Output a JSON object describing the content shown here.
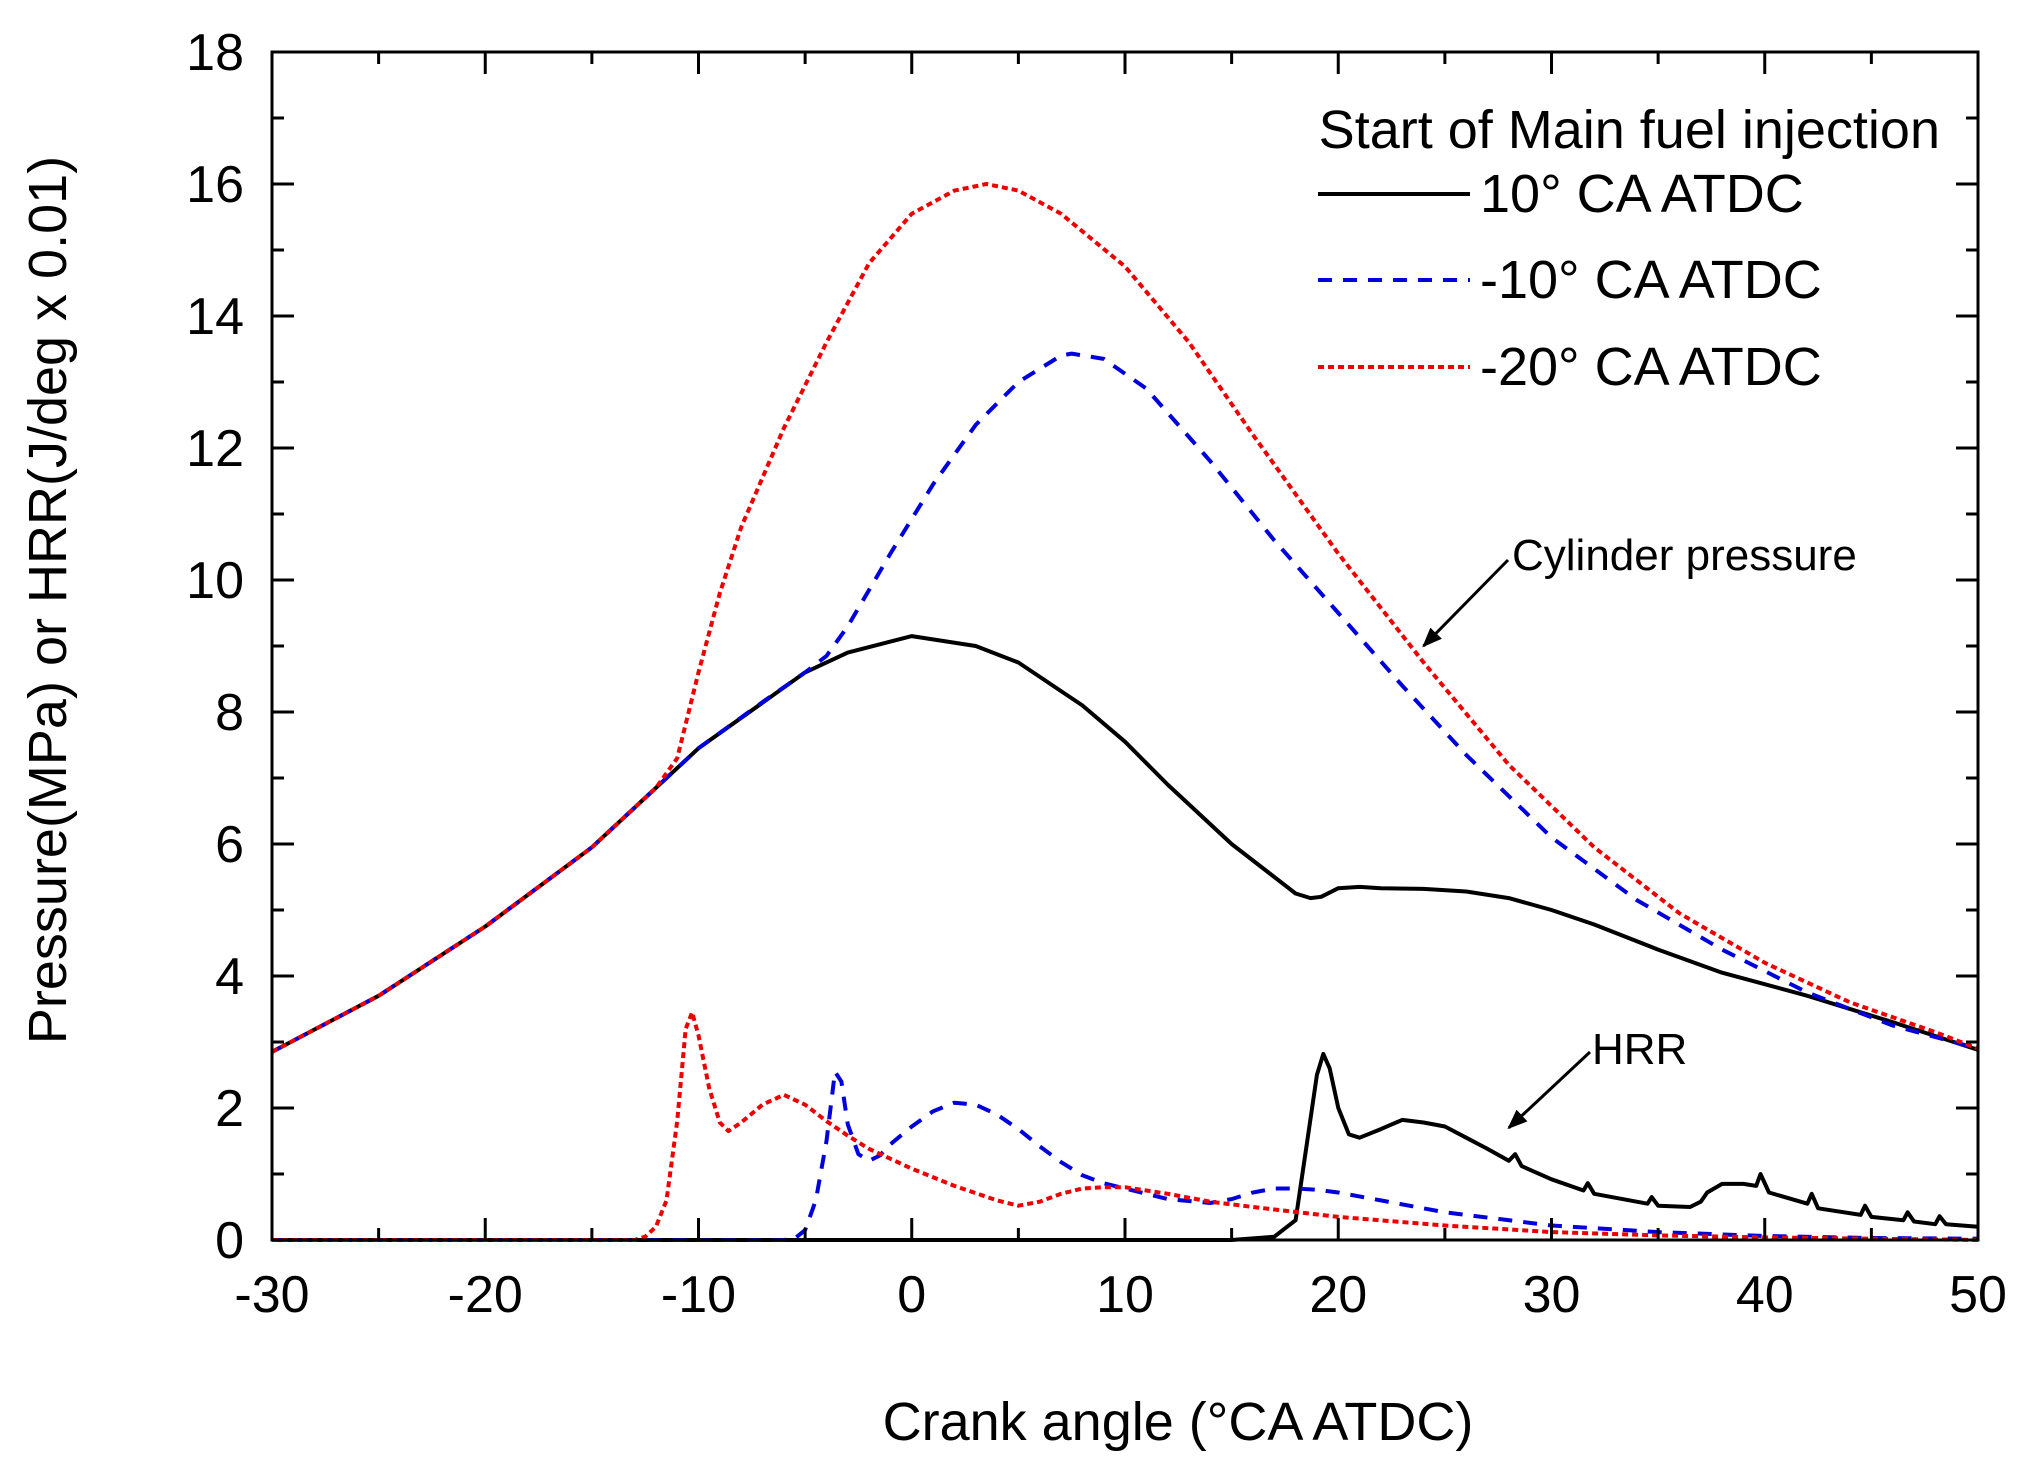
{
  "chart_data": {
    "type": "line",
    "xlabel": "Crank angle (°CA ATDC)",
    "ylabel": "Pressure(MPa) or HRR(J/deg x 0.01)",
    "xlim": [
      -30,
      50
    ],
    "ylim": [
      0,
      18
    ],
    "xticks": [
      -30,
      -20,
      -10,
      0,
      10,
      20,
      30,
      40,
      50
    ],
    "yticks": [
      0,
      2,
      4,
      6,
      8,
      10,
      12,
      14,
      16,
      18
    ],
    "grid": false,
    "legend": {
      "title": "Start of Main fuel injection",
      "placement": "top-right",
      "entries": [
        "10° CA ATDC",
        "-10° CA ATDC",
        "-20° CA ATDC"
      ]
    },
    "annotations": [
      {
        "text": "Cylinder pressure",
        "target": [
          24,
          9.0
        ]
      },
      {
        "text": "HRR",
        "target": [
          28,
          1.7
        ]
      }
    ],
    "series": [
      {
        "name": "10° CA ATDC",
        "quantity": "pressure",
        "color": "#000000",
        "dash": "solid",
        "x": [
          -30,
          -25,
          -20,
          -15,
          -10,
          -5,
          -3,
          0,
          3,
          5,
          8,
          10,
          12,
          15,
          17,
          18,
          18.7,
          19.2,
          20,
          21,
          22,
          24,
          26,
          28,
          30,
          32,
          35,
          38,
          42,
          46,
          50
        ],
        "y": [
          2.85,
          3.7,
          4.75,
          5.95,
          7.45,
          8.6,
          8.9,
          9.15,
          9.0,
          8.75,
          8.1,
          7.55,
          6.9,
          6.0,
          5.5,
          5.25,
          5.18,
          5.2,
          5.33,
          5.35,
          5.33,
          5.32,
          5.28,
          5.18,
          5.0,
          4.78,
          4.4,
          4.05,
          3.7,
          3.3,
          2.88
        ]
      },
      {
        "name": "-10° CA ATDC",
        "quantity": "pressure",
        "color": "#0000dd",
        "dash": "dashed",
        "x": [
          -30,
          -25,
          -20,
          -15,
          -10,
          -7,
          -5,
          -4,
          -3,
          -1,
          1,
          3,
          5,
          7,
          7.5,
          9,
          11,
          14,
          17,
          20,
          23,
          26,
          30,
          34,
          38,
          42,
          46,
          50
        ],
        "y": [
          2.85,
          3.7,
          4.75,
          5.95,
          7.45,
          8.15,
          8.6,
          8.85,
          9.3,
          10.4,
          11.45,
          12.35,
          13.0,
          13.4,
          13.43,
          13.35,
          12.9,
          11.8,
          10.6,
          9.5,
          8.4,
          7.35,
          6.1,
          5.15,
          4.4,
          3.75,
          3.25,
          2.9
        ]
      },
      {
        "name": "-20° CA ATDC",
        "quantity": "pressure",
        "color": "#ee0000",
        "dash": "dotted",
        "x": [
          -30,
          -25,
          -20,
          -15,
          -12,
          -11,
          -10,
          -9,
          -8,
          -6,
          -4,
          -2,
          0,
          2,
          3.5,
          5,
          7,
          10,
          13,
          16,
          20,
          24,
          28,
          32,
          36,
          40,
          44,
          48,
          50
        ],
        "y": [
          2.85,
          3.7,
          4.75,
          5.95,
          6.85,
          7.3,
          8.6,
          9.8,
          10.8,
          12.3,
          13.6,
          14.8,
          15.55,
          15.9,
          16.0,
          15.9,
          15.55,
          14.75,
          13.6,
          12.2,
          10.4,
          8.75,
          7.2,
          5.95,
          4.95,
          4.2,
          3.6,
          3.15,
          2.9
        ]
      },
      {
        "name": "10° CA ATDC",
        "quantity": "HRR",
        "color": "#000000",
        "dash": "solid",
        "x": [
          -30,
          15,
          17,
          18,
          18.5,
          19,
          19.3,
          19.6,
          20,
          20.5,
          21,
          22,
          23,
          24,
          25,
          26,
          27,
          28,
          28.3,
          28.6,
          30,
          31.5,
          31.7,
          32,
          34.5,
          34.7,
          35,
          36.5,
          37,
          37.3,
          38,
          39,
          39.6,
          39.8,
          40.2,
          42,
          42.2,
          42.5,
          44.5,
          44.7,
          45,
          46.5,
          46.7,
          47,
          48,
          48.2,
          48.5,
          50
        ],
        "y": [
          0,
          0,
          0.05,
          0.3,
          1.4,
          2.5,
          2.82,
          2.6,
          2.0,
          1.6,
          1.55,
          1.68,
          1.82,
          1.78,
          1.72,
          1.55,
          1.38,
          1.2,
          1.3,
          1.12,
          0.92,
          0.75,
          0.86,
          0.7,
          0.55,
          0.65,
          0.52,
          0.5,
          0.58,
          0.72,
          0.85,
          0.85,
          0.82,
          1.0,
          0.72,
          0.55,
          0.7,
          0.48,
          0.38,
          0.52,
          0.35,
          0.3,
          0.42,
          0.28,
          0.24,
          0.36,
          0.24,
          0.2
        ]
      },
      {
        "name": "-10° CA ATDC",
        "quantity": "HRR",
        "color": "#0000dd",
        "dash": "dashed",
        "x": [
          -30,
          -6,
          -5.5,
          -5,
          -4.5,
          -4,
          -3.6,
          -3.3,
          -3,
          -2.5,
          -2,
          -1.5,
          -1,
          0,
          1,
          2,
          3,
          4,
          5,
          6,
          7,
          8,
          9,
          10,
          12,
          14,
          15,
          16,
          17,
          18,
          19,
          20,
          22,
          25,
          30,
          35,
          40,
          45,
          50
        ],
        "y": [
          0,
          0,
          0.02,
          0.15,
          0.6,
          1.5,
          2.55,
          2.4,
          1.75,
          1.3,
          1.2,
          1.28,
          1.45,
          1.72,
          1.95,
          2.08,
          2.05,
          1.9,
          1.68,
          1.42,
          1.18,
          0.98,
          0.86,
          0.78,
          0.62,
          0.56,
          0.62,
          0.72,
          0.78,
          0.78,
          0.76,
          0.72,
          0.6,
          0.42,
          0.22,
          0.12,
          0.06,
          0.03,
          0.02
        ]
      },
      {
        "name": "-20° CA ATDC",
        "quantity": "HRR",
        "color": "#ee0000",
        "dash": "dotted",
        "x": [
          -30,
          -13,
          -12.5,
          -12,
          -11.5,
          -11,
          -10.6,
          -10.3,
          -10,
          -9.5,
          -9,
          -8.6,
          -8,
          -7,
          -6,
          -5,
          -4,
          -3,
          -2,
          0,
          2,
          4,
          5,
          6,
          7,
          8,
          9,
          10,
          12,
          14,
          16,
          20,
          25,
          30,
          35,
          40,
          45,
          50
        ],
        "y": [
          0,
          0,
          0.05,
          0.2,
          0.6,
          1.8,
          3.2,
          3.45,
          3.1,
          2.3,
          1.78,
          1.65,
          1.78,
          2.05,
          2.2,
          2.05,
          1.8,
          1.58,
          1.38,
          1.08,
          0.82,
          0.6,
          0.52,
          0.58,
          0.7,
          0.78,
          0.8,
          0.8,
          0.7,
          0.58,
          0.5,
          0.35,
          0.22,
          0.12,
          0.07,
          0.04,
          0.02,
          0.0
        ]
      }
    ]
  }
}
